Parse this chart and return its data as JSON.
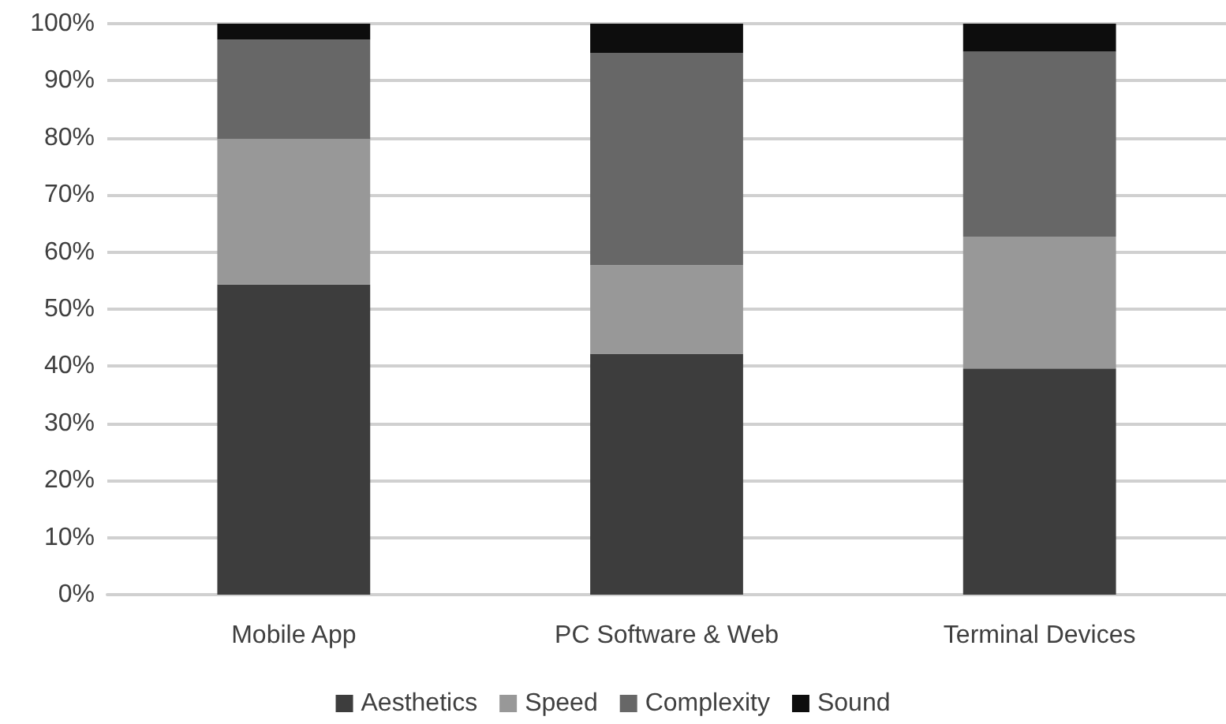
{
  "chart_data": {
    "type": "bar",
    "stacked": true,
    "categories": [
      "Mobile App",
      "PC Software & Web",
      "Terminal Devices"
    ],
    "series": [
      {
        "name": "Aesthetics",
        "color": "#3d3d3d",
        "values": [
          54.3,
          42.2,
          39.6
        ]
      },
      {
        "name": "Speed",
        "color": "#989898",
        "values": [
          25.5,
          15.5,
          23.1
        ]
      },
      {
        "name": "Complexity",
        "color": "#676767",
        "values": [
          17.4,
          37.2,
          32.4
        ]
      },
      {
        "name": "Sound",
        "color": "#0d0d0d",
        "values": [
          2.8,
          5.1,
          4.9
        ]
      }
    ],
    "ylim": [
      0,
      100
    ],
    "yticks": [
      {
        "value": 0,
        "label": "0%"
      },
      {
        "value": 10,
        "label": "10%"
      },
      {
        "value": 20,
        "label": "20%"
      },
      {
        "value": 30,
        "label": "30%"
      },
      {
        "value": 40,
        "label": "40%"
      },
      {
        "value": 50,
        "label": "50%"
      },
      {
        "value": 60,
        "label": "60%"
      },
      {
        "value": 70,
        "label": "70%"
      },
      {
        "value": 80,
        "label": "80%"
      },
      {
        "value": 90,
        "label": "90%"
      },
      {
        "value": 100,
        "label": "100%"
      }
    ],
    "grid": "y",
    "legend": "bottom"
  }
}
